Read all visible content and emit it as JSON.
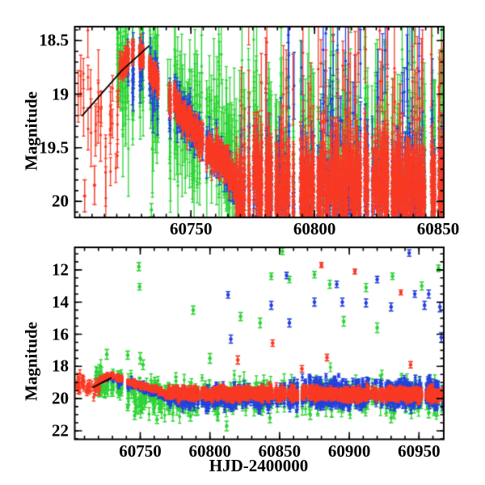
{
  "figure": {
    "background": "#ffffff"
  },
  "colors": {
    "red": "#f93a24",
    "green": "#2fd336",
    "blue": "#2541dd",
    "line": "#000000",
    "axis": "#000000"
  },
  "chart_data": [
    {
      "type": "scatter",
      "panel": "top",
      "title": "",
      "xlabel": "",
      "ylabel": "Magnitude",
      "xlim": [
        60703,
        60852.3
      ],
      "ylim": [
        18.37,
        20.15
      ],
      "y_axis_inverted": true,
      "grid": false,
      "legend": "none",
      "x_ticks": [
        {
          "v": 60750,
          "label": "60750"
        },
        {
          "v": 60800,
          "label": "60800"
        },
        {
          "v": 60850,
          "label": "60850"
        }
      ],
      "y_ticks": [
        {
          "v": 18.5,
          "label": "18.5"
        },
        {
          "v": 19,
          "label": "19"
        },
        {
          "v": 19.5,
          "label": "19.5"
        },
        {
          "v": 20,
          "label": "20"
        }
      ],
      "x_minor_step": 5,
      "y_minor_step": 0.1,
      "trend_line": [
        [
          60706,
          19.2
        ],
        [
          60722,
          18.78
        ],
        [
          60733,
          18.55
        ]
      ],
      "series": [
        {
          "name": "green",
          "color": "green",
          "clusters": [
            [
              60720,
              60742,
              130,
              18.62,
              19.15,
              0.3,
              0.28
            ],
            [
              60742,
              60770,
              150,
              19.15,
              19.6,
              0.32,
              0.3
            ],
            [
              60770,
              60852,
              480,
              19.55,
              19.55,
              0.5,
              0.32
            ]
          ],
          "outliers": [
            [
              60734,
              20.08,
              0.06
            ]
          ]
        },
        {
          "name": "blue",
          "color": "blue",
          "clusters": [
            [
              60724,
              60742,
              80,
              18.68,
              19.02,
              0.12,
              0.1
            ],
            [
              60742,
              60770,
              200,
              19.02,
              19.9,
              0.1,
              0.09
            ],
            [
              60770,
              60852,
              650,
              19.9,
              19.9,
              0.33,
              0.15
            ],
            [
              60775,
              60852,
              45,
              18.95,
              18.95,
              0.4,
              0.3
            ]
          ],
          "outliers": []
        },
        {
          "name": "red",
          "color": "red",
          "clusters": [
            [
              60704,
              60721,
              34,
              19.05,
              19.3,
              0.28,
              0.2
            ],
            [
              60721,
              60727,
              90,
              18.75,
              18.57,
              0.05,
              0.05
            ],
            [
              60727,
              60740,
              180,
              18.58,
              18.98,
              0.05,
              0.05
            ],
            [
              60740,
              60755,
              260,
              18.98,
              19.45,
              0.06,
              0.06
            ],
            [
              60755,
              60768,
              260,
              19.45,
              19.78,
              0.07,
              0.07
            ],
            [
              60768,
              60852,
              1700,
              19.82,
              19.85,
              0.24,
              0.12
            ],
            [
              60770,
              60852,
              70,
              19.0,
              19.05,
              0.45,
              0.3
            ]
          ],
          "outliers": [
            [
              60707,
              19.95,
              0.15
            ],
            [
              60711,
              19.85,
              0.18
            ]
          ]
        }
      ]
    },
    {
      "type": "scatter",
      "panel": "bottom",
      "title": "",
      "xlabel": "HJD-2400000",
      "ylabel": "Magnitude",
      "xlim": [
        60703,
        60967.8
      ],
      "ylim": [
        10.6,
        22.53
      ],
      "y_axis_inverted": true,
      "grid": false,
      "legend": "none",
      "x_ticks": [
        {
          "v": 60750,
          "label": "60750"
        },
        {
          "v": 60800,
          "label": "60800"
        },
        {
          "v": 60850,
          "label": "60850"
        },
        {
          "v": 60900,
          "label": "60900"
        },
        {
          "v": 60950,
          "label": "60950"
        }
      ],
      "y_ticks": [
        {
          "v": 12,
          "label": "12"
        },
        {
          "v": 14,
          "label": "14"
        },
        {
          "v": 16,
          "label": "16"
        },
        {
          "v": 18,
          "label": "18"
        },
        {
          "v": 20,
          "label": "20"
        },
        {
          "v": 22,
          "label": "22"
        }
      ],
      "x_minor_step": 10,
      "y_minor_step": 0.5,
      "trend_line": [
        [
          60716,
          19.3
        ],
        [
          60729,
          18.72
        ]
      ],
      "series": [
        {
          "name": "green",
          "color": "green",
          "clusters": [
            [
              60718,
              60745,
              100,
              18.85,
              19.35,
              0.4,
              0.28
            ],
            [
              60745,
              60968,
              780,
              19.85,
              19.85,
              0.55,
              0.3
            ]
          ],
          "outliers": [
            [
              60749,
              11.8,
              0.25
            ],
            [
              60749.5,
              13.05,
              0.2
            ],
            [
              60726,
              17.25,
              0.3
            ],
            [
              60741,
              17.3,
              0.25
            ],
            [
              60750,
              17.5,
              0.35
            ],
            [
              60752,
              17.9,
              0.3
            ],
            [
              60788,
              14.5,
              0.25
            ],
            [
              60800,
              17.5,
              0.3
            ],
            [
              60822,
              14.9,
              0.25
            ],
            [
              60836,
              15.3,
              0.3
            ],
            [
              60844,
              12.4,
              0.2
            ],
            [
              60852,
              10.85,
              0.2
            ],
            [
              60857,
              12.6,
              0.2
            ],
            [
              60875,
              12.3,
              0.2
            ],
            [
              60886,
              12.9,
              0.25
            ],
            [
              60896,
              15.2,
              0.3
            ],
            [
              60912,
              13.1,
              0.25
            ],
            [
              60920,
              15.6,
              0.3
            ],
            [
              60931,
              12.4,
              0.2
            ],
            [
              60952,
              13.0,
              0.25
            ],
            [
              60964,
              11.9,
              0.2
            ],
            [
              60741,
              20.55,
              0.2
            ],
            [
              60746,
              21.05,
              0.25
            ],
            [
              60762,
              21.3,
              0.25
            ],
            [
              60786,
              21.1,
              0.3
            ],
            [
              60790,
              20.8,
              0.25
            ],
            [
              60812,
              21.7,
              0.3
            ],
            [
              60843,
              21.2,
              0.3
            ],
            [
              60872,
              21.0,
              0.3
            ],
            [
              60930,
              21.2,
              0.3
            ],
            [
              60957,
              20.9,
              0.3
            ]
          ]
        },
        {
          "name": "blue",
          "color": "blue",
          "clusters": [
            [
              60726,
              60745,
              55,
              18.75,
              19.1,
              0.15,
              0.1
            ],
            [
              60745,
              60770,
              130,
              19.1,
              19.95,
              0.12,
              0.1
            ],
            [
              60770,
              60968,
              1300,
              19.95,
              19.95,
              0.32,
              0.15
            ],
            [
              60855,
              60968,
              230,
              19.15,
              19.15,
              0.28,
              0.15
            ]
          ],
          "outliers": [
            [
              60813,
              13.55,
              0.2
            ],
            [
              60815,
              16.3,
              0.25
            ],
            [
              60844,
              14.2,
              0.25
            ],
            [
              60855,
              12.35,
              0.2
            ],
            [
              60857,
              15.3,
              0.25
            ],
            [
              60875,
              14.0,
              0.25
            ],
            [
              60891,
              12.9,
              0.2
            ],
            [
              60895,
              14.0,
              0.25
            ],
            [
              60912,
              14.05,
              0.25
            ],
            [
              60920,
              12.6,
              0.2
            ],
            [
              60930,
              14.3,
              0.25
            ],
            [
              60943,
              10.95,
              0.2
            ],
            [
              60947,
              13.5,
              0.2
            ],
            [
              60954,
              14.2,
              0.25
            ],
            [
              60957,
              13.5,
              0.25
            ],
            [
              60965,
              14.3,
              0.3
            ],
            [
              60966,
              16.2,
              0.3
            ]
          ]
        },
        {
          "name": "red",
          "color": "red",
          "clusters": [
            [
              60704,
              60721,
              48,
              19.15,
              19.25,
              0.3,
              0.2
            ],
            [
              60721,
              60728,
              80,
              18.85,
              18.55,
              0.08,
              0.07
            ],
            [
              60728,
              60742,
              130,
              18.55,
              18.95,
              0.08,
              0.07
            ],
            [
              60742,
              60770,
              220,
              18.95,
              19.7,
              0.1,
              0.08
            ],
            [
              60770,
              60968,
              2400,
              19.68,
              19.72,
              0.2,
              0.12
            ]
          ],
          "outliers": [
            [
              60820,
              17.6,
              0.25
            ],
            [
              60845,
              16.55,
              0.2
            ],
            [
              60866,
              18.15,
              0.2
            ],
            [
              60880,
              11.7,
              0.15
            ],
            [
              60884,
              17.45,
              0.2
            ],
            [
              60904,
              12.1,
              0.15
            ],
            [
              60937,
              13.4,
              0.15
            ],
            [
              60944,
              17.9,
              0.2
            ]
          ]
        }
      ]
    }
  ]
}
